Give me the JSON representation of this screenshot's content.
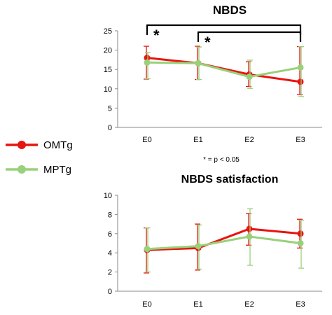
{
  "chart_data": [
    {
      "type": "line",
      "title": "NBDS",
      "categories": [
        "E0",
        "E1",
        "E2",
        "E3"
      ],
      "ylim": [
        0,
        25
      ],
      "yticks": [
        0,
        5,
        10,
        15,
        20,
        25
      ],
      "grid": false,
      "series": [
        {
          "name": "OMTg",
          "color": "#e8140f",
          "values": [
            18.0,
            16.6,
            13.7,
            11.8
          ],
          "err_low": [
            12.5,
            12.4,
            10.6,
            8.5
          ],
          "err_high": [
            21.0,
            21.0,
            17.0,
            20.9
          ]
        },
        {
          "name": "MPTg",
          "color": "#98d17a",
          "values": [
            16.8,
            16.6,
            13.1,
            15.5
          ],
          "err_low": [
            12.6,
            12.4,
            10.1,
            8.0
          ],
          "err_high": [
            19.4,
            20.8,
            17.4,
            20.9
          ]
        }
      ],
      "annotations": {
        "brackets": [
          {
            "from": "E0",
            "to": "E3",
            "label": "*"
          },
          {
            "from": "E1",
            "to": "E3",
            "label": "*"
          }
        ],
        "significance_note": "* = p < 0.05"
      }
    },
    {
      "type": "line",
      "title": "NBDS satisfaction",
      "categories": [
        "E0",
        "E1",
        "E2",
        "E3"
      ],
      "ylim": [
        0,
        10
      ],
      "yticks": [
        0,
        2,
        4,
        6,
        8,
        10
      ],
      "grid": false,
      "series": [
        {
          "name": "OMTg",
          "color": "#e8140f",
          "values": [
            4.3,
            4.5,
            6.5,
            6.0
          ],
          "err_low": [
            1.9,
            2.2,
            4.8,
            4.5
          ],
          "err_high": [
            6.6,
            7.0,
            8.1,
            7.5
          ]
        },
        {
          "name": "MPTg",
          "color": "#98d17a",
          "values": [
            4.4,
            4.7,
            5.7,
            5.0
          ],
          "err_low": [
            2.0,
            2.3,
            2.7,
            2.4
          ],
          "err_high": [
            6.6,
            6.9,
            8.6,
            7.4
          ]
        }
      ]
    }
  ],
  "legend": {
    "placement": "left",
    "items": [
      {
        "name": "OMTg",
        "color": "#e8140f"
      },
      {
        "name": "MPTg",
        "color": "#98d17a"
      }
    ]
  }
}
